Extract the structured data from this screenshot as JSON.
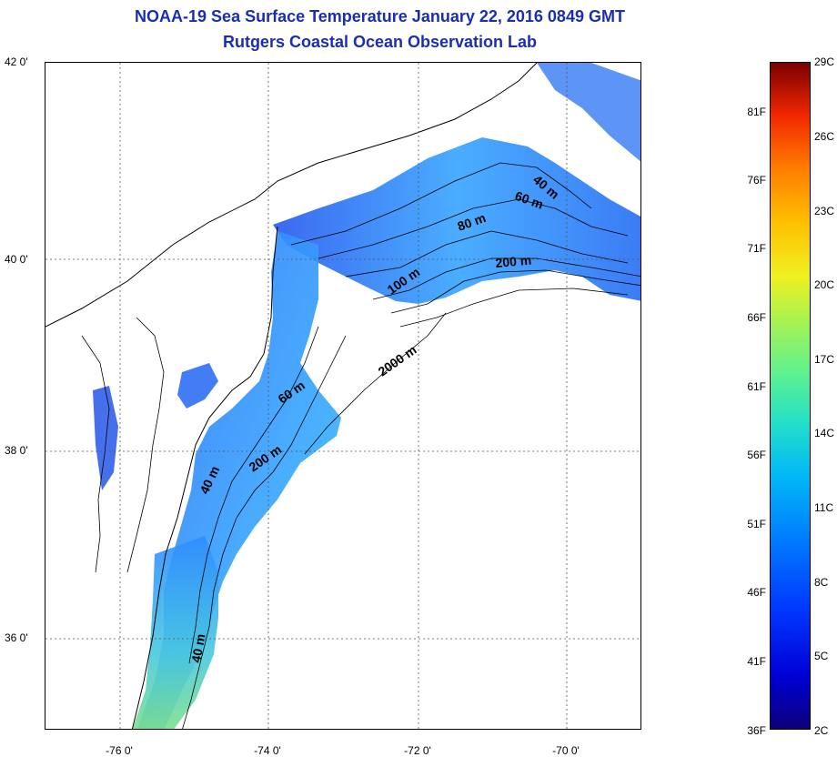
{
  "title": {
    "line1": "NOAA-19 Sea Surface Temperature January 22, 2016 0849 GMT",
    "line2": "Rutgers Coastal Ocean Observation Lab"
  },
  "axes": {
    "lat_labels": [
      "42 0'",
      "40 0'",
      "38 0'",
      "36 0'"
    ],
    "lon_labels": [
      "-76 0'",
      "-74 0'",
      "-72 0'",
      "-70 0'"
    ],
    "grid": true,
    "grid_style": "dotted"
  },
  "contours": {
    "labels": [
      "40 m",
      "60 m",
      "80 m",
      "100 m",
      "200 m",
      "2000 m",
      "60 m",
      "200 m",
      "40 m",
      "40 m"
    ]
  },
  "colorbar": {
    "fahrenheit": [
      "81F",
      "76F",
      "71F",
      "66F",
      "61F",
      "56F",
      "51F",
      "46F",
      "41F",
      "36F"
    ],
    "celsius": [
      "29C",
      "26C",
      "23C",
      "20C",
      "17C",
      "14C",
      "11C",
      "8C",
      "5C",
      "2C"
    ],
    "range_c": [
      2,
      29
    ],
    "colors": {
      "min": "#0a007a",
      "low": "#0038ff",
      "mid": "#24e0c8",
      "warm": "#f0f020",
      "max": "#7a0000"
    }
  },
  "colors": {
    "title": "#1a2fb0",
    "ocean_cold": "#2a5cf0",
    "ocean_mid": "#3aa6ff",
    "ocean_warm": "#44d8e0"
  }
}
